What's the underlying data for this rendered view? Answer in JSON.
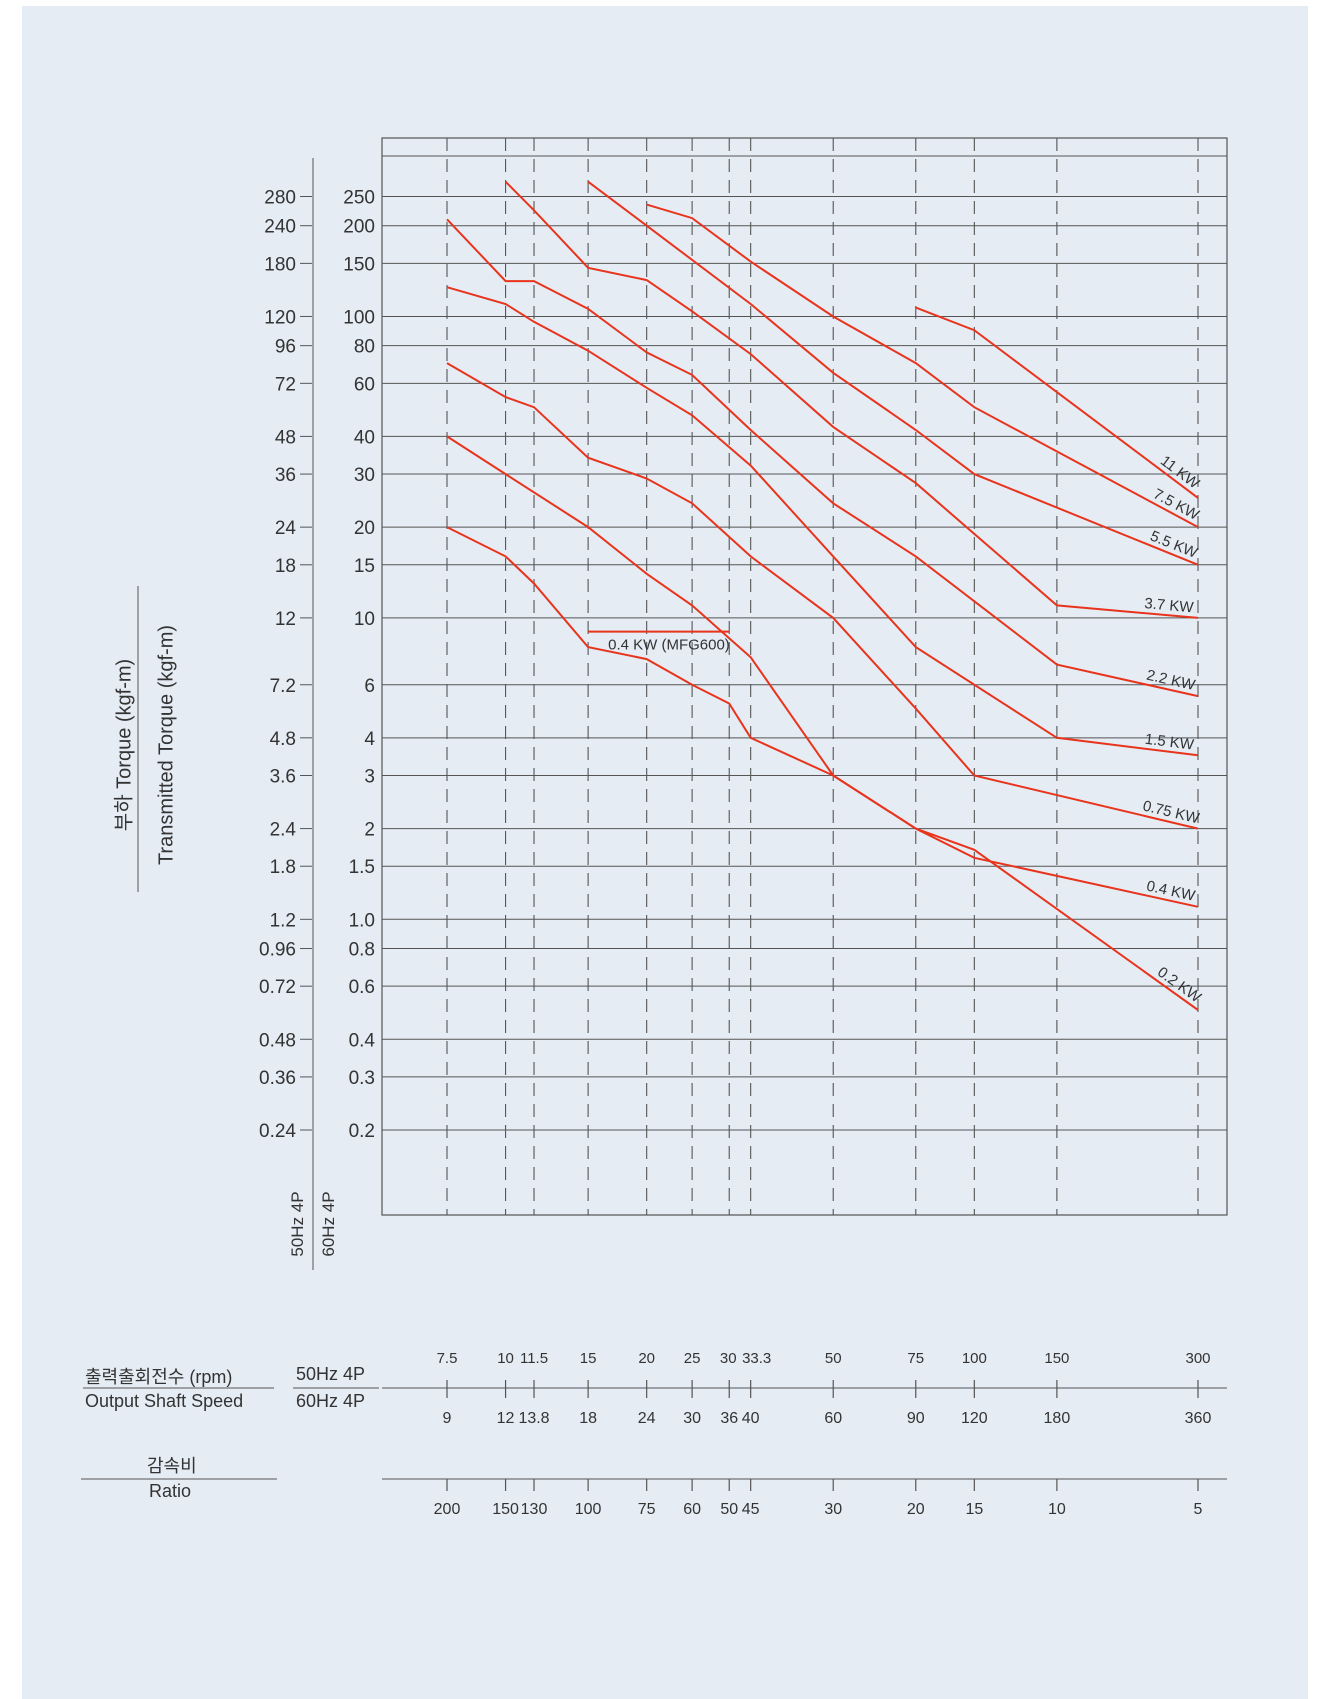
{
  "y_title_ko": "부하 Torque (kgf-m)",
  "y_title_en": "Transmitted Torque (kgf-m)",
  "hz50": "50Hz 4P",
  "hz60": "60Hz 4P",
  "speed_title_ko": "출력출회전수 (rpm)",
  "speed_title_en": "Output Shaft Speed",
  "ratio_title_ko": "감속비",
  "ratio_title_en": "Ratio",
  "chart_data": {
    "type": "line",
    "title": "",
    "scale": "log-log",
    "grid": true,
    "series_color": "#e8341c",
    "y_ticks_50hz": [
      "280",
      "240",
      "180",
      "120",
      "96",
      "72",
      "48",
      "36",
      "24",
      "18",
      "12",
      "7.2",
      "4.8",
      "3.6",
      "2.4",
      "1.8",
      "1.2",
      "0.96",
      "0.72",
      "0.48",
      "0.36",
      "0.24"
    ],
    "y_ticks_60hz": [
      "250",
      "200",
      "150",
      "100",
      "80",
      "60",
      "40",
      "30",
      "20",
      "15",
      "10",
      "6",
      "4",
      "3",
      "2",
      "1.5",
      "1.0",
      "0.8",
      "0.6",
      "0.4",
      "0.3",
      "0.2"
    ],
    "y_tick_values": [
      250,
      200,
      150,
      100,
      80,
      60,
      40,
      30,
      20,
      15,
      10,
      6,
      4,
      3,
      2,
      1.5,
      1.0,
      0.8,
      0.6,
      0.4,
      0.3,
      0.2
    ],
    "ylim": [
      0.2,
      250
    ],
    "speed_50hz": [
      "7.5",
      "10",
      "11.5",
      "15",
      "20",
      "25",
      "30",
      "33.3",
      "50",
      "75",
      "100",
      "150",
      "300"
    ],
    "speed_60hz": [
      "9",
      "12",
      "13.8",
      "18",
      "24",
      "30",
      "36",
      "40",
      "60",
      "90",
      "120",
      "180",
      "360"
    ],
    "ratio": [
      "200",
      "150",
      "130",
      "100",
      "75",
      "60",
      "50",
      "45",
      "30",
      "20",
      "15",
      "10",
      "5"
    ],
    "series": [
      {
        "name": "11 KW",
        "points": [
          [
            90,
            107
          ],
          [
            120,
            90
          ],
          [
            360,
            25
          ]
        ]
      },
      {
        "name": "7.5 KW",
        "points": [
          [
            24,
            235
          ],
          [
            30,
            212
          ],
          [
            40,
            152
          ],
          [
            60,
            100
          ],
          [
            90,
            70
          ],
          [
            120,
            50
          ],
          [
            360,
            20
          ]
        ]
      },
      {
        "name": "5.5 KW",
        "points": [
          [
            18,
            280
          ],
          [
            24,
            200
          ],
          [
            40,
            110
          ],
          [
            60,
            65
          ],
          [
            90,
            42
          ],
          [
            120,
            30
          ],
          [
            360,
            15
          ]
        ]
      },
      {
        "name": "3.7 KW",
        "points": [
          [
            12,
            280
          ],
          [
            13.8,
            225
          ],
          [
            18,
            145
          ],
          [
            24,
            132
          ],
          [
            30,
            104
          ],
          [
            40,
            75
          ],
          [
            60,
            43
          ],
          [
            90,
            28
          ],
          [
            120,
            19
          ],
          [
            180,
            11
          ],
          [
            360,
            10
          ]
        ]
      },
      {
        "name": "2.2 KW",
        "points": [
          [
            9,
            210
          ],
          [
            12,
            131
          ],
          [
            13.8,
            131
          ],
          [
            18,
            106
          ],
          [
            24,
            76
          ],
          [
            30,
            64
          ],
          [
            40,
            42
          ],
          [
            60,
            24
          ],
          [
            90,
            16
          ],
          [
            180,
            7
          ],
          [
            360,
            5.5
          ]
        ]
      },
      {
        "name": "1.5 KW",
        "points": [
          [
            9,
            125
          ],
          [
            12,
            110
          ],
          [
            13.8,
            96
          ],
          [
            18,
            77
          ],
          [
            24,
            58
          ],
          [
            30,
            47
          ],
          [
            40,
            32
          ],
          [
            60,
            16
          ],
          [
            90,
            8
          ],
          [
            180,
            4
          ],
          [
            360,
            3.5
          ]
        ]
      },
      {
        "name": "0.75 KW",
        "points": [
          [
            9,
            70
          ],
          [
            12,
            54
          ],
          [
            13.8,
            50
          ],
          [
            18,
            34
          ],
          [
            24,
            29
          ],
          [
            30,
            24
          ],
          [
            40,
            16
          ],
          [
            60,
            10
          ],
          [
            90,
            5
          ],
          [
            120,
            3
          ],
          [
            360,
            2
          ]
        ]
      },
      {
        "name": "0.4 KW",
        "points": [
          [
            9,
            40
          ],
          [
            12,
            30
          ],
          [
            18,
            20
          ],
          [
            24,
            14
          ],
          [
            30,
            11
          ],
          [
            40,
            7.4
          ],
          [
            60,
            3
          ],
          [
            90,
            2
          ],
          [
            120,
            1.6
          ],
          [
            360,
            1.1
          ]
        ]
      },
      {
        "name": "0.2 KW",
        "points": [
          [
            9,
            20
          ],
          [
            12,
            16
          ],
          [
            13.8,
            13
          ],
          [
            18,
            8
          ],
          [
            24,
            7.3
          ],
          [
            30,
            6
          ],
          [
            36,
            5.2
          ],
          [
            40,
            4
          ],
          [
            60,
            3
          ],
          [
            90,
            2
          ],
          [
            120,
            1.7
          ],
          [
            360,
            0.5
          ]
        ]
      }
    ],
    "annotation": {
      "label": "0.4 KW (MFG600)",
      "points": [
        [
          18,
          9
        ],
        [
          36,
          9
        ]
      ]
    }
  }
}
